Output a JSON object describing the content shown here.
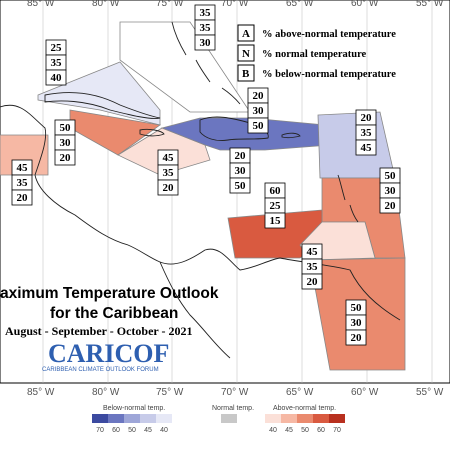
{
  "map": {
    "longitudes": [
      "85° W",
      "80° W",
      "75° W",
      "70° W",
      "65° W",
      "60° W",
      "55° W"
    ],
    "longitudes_bottom": [
      "85° W",
      "80° W",
      "75° W",
      "70° W",
      "65° W",
      "60° W",
      "55° W"
    ]
  },
  "legend": {
    "items": [
      {
        "letter": "A",
        "text": "% above-normal temperature"
      },
      {
        "letter": "N",
        "text": "% normal temperature"
      },
      {
        "letter": "B",
        "text": "% below-normal temperature"
      }
    ]
  },
  "title": {
    "line1": "aximum Temperature Outlook",
    "line2": "for the Caribbean",
    "line3": "August - September - October - 2021"
  },
  "logo": {
    "name": "CARICOF",
    "subtitle": "CARIBBEAN CLIMATE OUTLOOK FORUM"
  },
  "colorbar": {
    "below_label": "Below-normal temp.",
    "normal_label": "Normal temp.",
    "above_label": "Above-normal temp.",
    "below_ticks": [
      "70",
      "60",
      "50",
      "45",
      "40"
    ],
    "above_ticks": [
      "40",
      "45",
      "50",
      "60",
      "70"
    ],
    "below_colors": [
      "#3c4aa0",
      "#6b76c0",
      "#9ea6d8",
      "#c7cbe9",
      "#e6e8f6"
    ],
    "normal_color": "#c8c8c8",
    "above_colors": [
      "#fbe0d8",
      "#f6b8a4",
      "#ea8a6e",
      "#d95a40",
      "#b8301f"
    ]
  },
  "regions": [
    {
      "name": "bahamas",
      "a": "35",
      "n": "35",
      "b": "30"
    },
    {
      "name": "cuba",
      "a": "25",
      "n": "35",
      "b": "40"
    },
    {
      "name": "cayman",
      "a": "50",
      "n": "30",
      "b": "20"
    },
    {
      "name": "belize",
      "a": "45",
      "n": "35",
      "b": "20"
    },
    {
      "name": "jamaica",
      "a": "45",
      "n": "35",
      "b": "20"
    },
    {
      "name": "turks",
      "a": "20",
      "n": "30",
      "b": "50"
    },
    {
      "name": "hispaniola",
      "a": "20",
      "n": "30",
      "b": "50"
    },
    {
      "name": "leeward",
      "a": "20",
      "n": "35",
      "b": "45"
    },
    {
      "name": "windward",
      "a": "50",
      "n": "30",
      "b": "20"
    },
    {
      "name": "abc",
      "a": "60",
      "n": "25",
      "b": "15"
    },
    {
      "name": "trinidad",
      "a": "45",
      "n": "35",
      "b": "20"
    },
    {
      "name": "guianas",
      "a": "50",
      "n": "30",
      "b": "20"
    }
  ]
}
